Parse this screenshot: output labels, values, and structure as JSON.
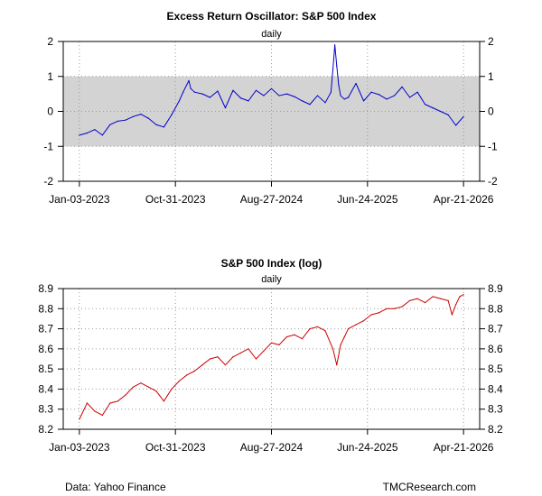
{
  "footer": {
    "source": "Data: Yahoo Finance",
    "credit": "TMCResearch.com"
  },
  "chart_data": [
    {
      "type": "line",
      "title": "Excess Return Oscillator: S&P 500 Index",
      "subtitle": "daily",
      "x_tick_labels": [
        "Jan-03-2023",
        "Oct-31-2023",
        "Aug-27-2024",
        "Jun-24-2025",
        "Apr-21-2026"
      ],
      "x_tick_positions": [
        0,
        0.25,
        0.5,
        0.75,
        1.0
      ],
      "xlim": [
        -0.042,
        1.042
      ],
      "ylim": [
        -2,
        2
      ],
      "y_ticks": [
        -2,
        -1,
        0,
        1,
        2
      ],
      "y_tick_labels": [
        "-2",
        "-1",
        "0",
        "1",
        "2"
      ],
      "shaded_band": [
        -1,
        1
      ],
      "grid": true,
      "series": [
        {
          "name": "Excess Return Oscillator",
          "color": "#0000cc",
          "x": [
            0.0,
            0.02,
            0.04,
            0.06,
            0.08,
            0.1,
            0.12,
            0.14,
            0.16,
            0.18,
            0.2,
            0.22,
            0.24,
            0.26,
            0.27,
            0.285,
            0.29,
            0.3,
            0.32,
            0.34,
            0.36,
            0.38,
            0.4,
            0.42,
            0.44,
            0.46,
            0.48,
            0.5,
            0.52,
            0.54,
            0.56,
            0.58,
            0.6,
            0.62,
            0.64,
            0.655,
            0.66,
            0.665,
            0.67,
            0.675,
            0.68,
            0.69,
            0.7,
            0.72,
            0.74,
            0.76,
            0.78,
            0.8,
            0.82,
            0.84,
            0.86,
            0.88,
            0.9,
            0.92,
            0.94,
            0.96,
            0.98,
            1.0
          ],
          "values": [
            -0.68,
            -0.62,
            -0.52,
            -0.68,
            -0.38,
            -0.28,
            -0.25,
            -0.15,
            -0.08,
            -0.2,
            -0.38,
            -0.45,
            -0.1,
            0.3,
            0.55,
            0.88,
            0.65,
            0.55,
            0.5,
            0.4,
            0.58,
            0.1,
            0.6,
            0.38,
            0.3,
            0.6,
            0.45,
            0.65,
            0.45,
            0.5,
            0.42,
            0.3,
            0.2,
            0.45,
            0.25,
            0.55,
            1.2,
            1.9,
            1.3,
            0.75,
            0.45,
            0.35,
            0.4,
            0.8,
            0.3,
            0.55,
            0.48,
            0.35,
            0.45,
            0.7,
            0.4,
            0.55,
            0.2,
            0.1,
            0.0,
            -0.1,
            -0.4,
            -0.15
          ]
        }
      ]
    },
    {
      "type": "line",
      "title": "S&P 500 Index (log)",
      "subtitle": "daily",
      "x_tick_labels": [
        "Jan-03-2023",
        "Oct-31-2023",
        "Aug-27-2024",
        "Jun-24-2025",
        "Apr-21-2026"
      ],
      "x_tick_positions": [
        0,
        0.25,
        0.5,
        0.75,
        1.0
      ],
      "xlim": [
        -0.042,
        1.042
      ],
      "ylim": [
        8.2,
        8.9
      ],
      "y_ticks": [
        8.2,
        8.3,
        8.4,
        8.5,
        8.6,
        8.7,
        8.8,
        8.9
      ],
      "y_tick_labels": [
        "8.2",
        "8.3",
        "8.4",
        "8.5",
        "8.6",
        "8.7",
        "8.8",
        "8.9"
      ],
      "grid": true,
      "series": [
        {
          "name": "S&P 500 Index (log)",
          "color": "#cc0000",
          "x": [
            0.0,
            0.02,
            0.04,
            0.06,
            0.08,
            0.1,
            0.12,
            0.14,
            0.16,
            0.18,
            0.2,
            0.22,
            0.24,
            0.26,
            0.28,
            0.3,
            0.32,
            0.34,
            0.36,
            0.38,
            0.4,
            0.42,
            0.44,
            0.46,
            0.48,
            0.5,
            0.52,
            0.54,
            0.56,
            0.58,
            0.6,
            0.62,
            0.64,
            0.66,
            0.67,
            0.68,
            0.69,
            0.7,
            0.72,
            0.74,
            0.76,
            0.78,
            0.8,
            0.82,
            0.84,
            0.86,
            0.88,
            0.9,
            0.92,
            0.94,
            0.96,
            0.97,
            0.98,
            0.99,
            1.0
          ],
          "values": [
            8.25,
            8.33,
            8.29,
            8.27,
            8.33,
            8.34,
            8.37,
            8.41,
            8.43,
            8.41,
            8.39,
            8.34,
            8.4,
            8.44,
            8.47,
            8.49,
            8.52,
            8.55,
            8.56,
            8.52,
            8.56,
            8.58,
            8.6,
            8.55,
            8.59,
            8.63,
            8.62,
            8.66,
            8.67,
            8.65,
            8.7,
            8.71,
            8.69,
            8.6,
            8.52,
            8.62,
            8.66,
            8.7,
            8.72,
            8.74,
            8.77,
            8.78,
            8.8,
            8.8,
            8.81,
            8.84,
            8.85,
            8.83,
            8.86,
            8.85,
            8.84,
            8.77,
            8.82,
            8.86,
            8.87
          ]
        }
      ]
    }
  ]
}
